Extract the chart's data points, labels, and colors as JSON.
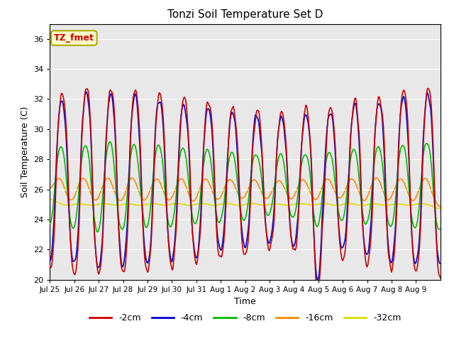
{
  "title": "Tonzi Soil Temperature Set D",
  "xlabel": "Time",
  "ylabel": "Soil Temperature (C)",
  "ylim": [
    20,
    37
  ],
  "yticks": [
    20,
    22,
    24,
    26,
    28,
    30,
    32,
    34,
    36
  ],
  "colors": {
    "-2cm": "#cc0000",
    "-4cm": "#0000cc",
    "-8cm": "#00bb00",
    "-16cm": "#ff8800",
    "-32cm": "#dddd00"
  },
  "legend_label": "TZ_fmet",
  "legend_label_color": "#cc0000",
  "legend_box_facecolor": "#ffffcc",
  "legend_box_edgecolor": "#aaaa00",
  "plot_bg": "#e8e8e8",
  "linewidth": 1.2,
  "xtick_labels": [
    "Jul 25",
    "Jul 26",
    "Jul 27",
    "Jul 28",
    "Jul 29",
    "Jul 30",
    "Jul 31",
    "Aug 1",
    "Aug 2",
    "Aug 3",
    "Aug 4",
    "Aug 5",
    "Aug 6",
    "Aug 7",
    "Aug 8",
    "Aug 9"
  ],
  "base_temp": 26.5,
  "amp2": 5.5,
  "amp4": 5.2,
  "amp8": 2.8,
  "amp16": 1.3,
  "amp32": 0.55,
  "phase_lag4": 0.08,
  "phase_lag8": 0.32,
  "phase_lag16": 0.8,
  "phase_lag32": 1.6
}
